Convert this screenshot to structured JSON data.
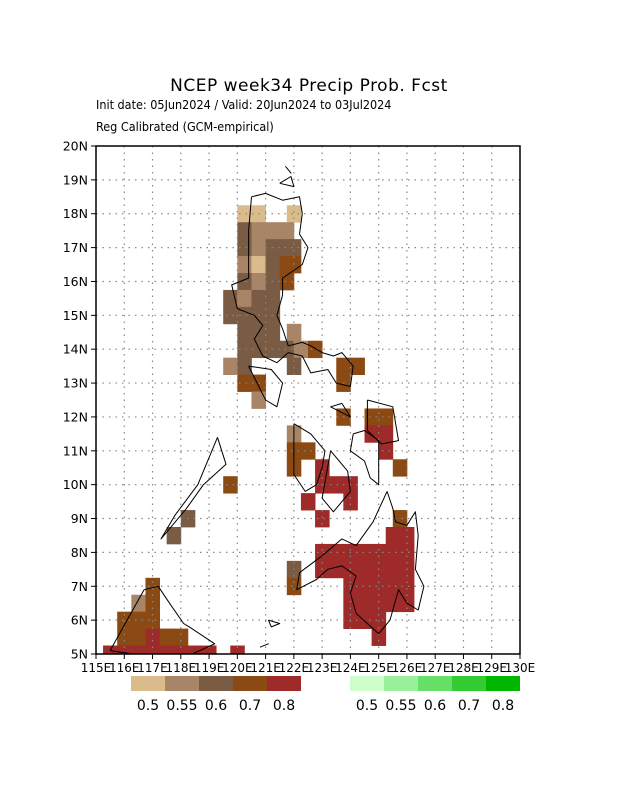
{
  "title": "NCEP week34 Precip Prob. Fcst",
  "subtitle_1": "Init date: 05Jun2024 / Valid: 20Jun2024 to 03Jul2024",
  "subtitle_2": "Reg Calibrated (GCM-empirical)",
  "axes": {
    "lon_ticks": [
      "115E",
      "116E",
      "117E",
      "118E",
      "119E",
      "120E",
      "121E",
      "122E",
      "123E",
      "124E",
      "125E",
      "126E",
      "127E",
      "128E",
      "129E",
      "130E"
    ],
    "lat_ticks": [
      "5N",
      "6N",
      "7N",
      "8N",
      "9N",
      "10N",
      "11N",
      "12N",
      "13N",
      "14N",
      "15N",
      "16N",
      "17N",
      "18N",
      "19N",
      "20N"
    ],
    "lon_range": [
      115,
      130
    ],
    "lat_range": [
      5,
      20
    ],
    "grid": "dotted"
  },
  "legend_dry": {
    "colors": [
      "#d9bb8c",
      "#a88566",
      "#7a5c45",
      "#8b4a14",
      "#9e2a2a"
    ],
    "labels": [
      "0.5",
      "0.55",
      "0.6",
      "0.7",
      "0.8"
    ]
  },
  "legend_wet": {
    "colors": [
      "#ccffcc",
      "#99f099",
      "#66e066",
      "#33cc33",
      "#00b800"
    ],
    "labels": [
      "0.5",
      "0.55",
      "0.6",
      "0.7",
      "0.8"
    ]
  },
  "colors": {
    "c1": "#d9bb8c",
    "c2": "#a88566",
    "c3": "#7a5c45",
    "c4": "#8b4a14",
    "c5": "#9e2a2a"
  },
  "map_cells": [
    {
      "lon": 120.25,
      "lat": 18.0,
      "c": "c1"
    },
    {
      "lon": 120.75,
      "lat": 18.0,
      "c": "c1"
    },
    {
      "lon": 122.0,
      "lat": 18.0,
      "c": "c1"
    },
    {
      "lon": 120.25,
      "lat": 17.5,
      "c": "c3"
    },
    {
      "lon": 120.75,
      "lat": 17.5,
      "c": "c2"
    },
    {
      "lon": 121.25,
      "lat": 17.5,
      "c": "c2"
    },
    {
      "lon": 121.75,
      "lat": 17.5,
      "c": "c2"
    },
    {
      "lon": 120.25,
      "lat": 17.0,
      "c": "c3"
    },
    {
      "lon": 120.75,
      "lat": 17.0,
      "c": "c2"
    },
    {
      "lon": 121.25,
      "lat": 17.0,
      "c": "c3"
    },
    {
      "lon": 121.75,
      "lat": 17.0,
      "c": "c3"
    },
    {
      "lon": 122.0,
      "lat": 17.0,
      "c": "c3"
    },
    {
      "lon": 120.25,
      "lat": 16.5,
      "c": "c2"
    },
    {
      "lon": 120.75,
      "lat": 16.5,
      "c": "c1"
    },
    {
      "lon": 121.25,
      "lat": 16.5,
      "c": "c3"
    },
    {
      "lon": 121.75,
      "lat": 16.5,
      "c": "c4"
    },
    {
      "lon": 122.0,
      "lat": 16.5,
      "c": "c4"
    },
    {
      "lon": 120.25,
      "lat": 16.0,
      "c": "c3"
    },
    {
      "lon": 120.75,
      "lat": 16.0,
      "c": "c2"
    },
    {
      "lon": 121.25,
      "lat": 16.0,
      "c": "c3"
    },
    {
      "lon": 121.75,
      "lat": 16.0,
      "c": "c4"
    },
    {
      "lon": 119.75,
      "lat": 15.5,
      "c": "c3"
    },
    {
      "lon": 120.25,
      "lat": 15.5,
      "c": "c2"
    },
    {
      "lon": 120.75,
      "lat": 15.5,
      "c": "c3"
    },
    {
      "lon": 121.25,
      "lat": 15.5,
      "c": "c3"
    },
    {
      "lon": 119.75,
      "lat": 15.0,
      "c": "c3"
    },
    {
      "lon": 120.25,
      "lat": 15.0,
      "c": "c3"
    },
    {
      "lon": 120.75,
      "lat": 15.0,
      "c": "c3"
    },
    {
      "lon": 121.25,
      "lat": 15.0,
      "c": "c3"
    },
    {
      "lon": 120.25,
      "lat": 14.5,
      "c": "c3"
    },
    {
      "lon": 120.75,
      "lat": 14.5,
      "c": "c3"
    },
    {
      "lon": 121.25,
      "lat": 14.5,
      "c": "c3"
    },
    {
      "lon": 122.0,
      "lat": 14.5,
      "c": "c2"
    },
    {
      "lon": 120.25,
      "lat": 14.0,
      "c": "c3"
    },
    {
      "lon": 120.75,
      "lat": 14.0,
      "c": "c3"
    },
    {
      "lon": 121.25,
      "lat": 14.0,
      "c": "c3"
    },
    {
      "lon": 121.75,
      "lat": 14.0,
      "c": "c3"
    },
    {
      "lon": 122.25,
      "lat": 14.0,
      "c": "c2"
    },
    {
      "lon": 122.75,
      "lat": 14.0,
      "c": "c4"
    },
    {
      "lon": 119.75,
      "lat": 13.5,
      "c": "c2"
    },
    {
      "lon": 120.25,
      "lat": 13.5,
      "c": "c3"
    },
    {
      "lon": 122.0,
      "lat": 13.5,
      "c": "c3"
    },
    {
      "lon": 123.75,
      "lat": 13.5,
      "c": "c4"
    },
    {
      "lon": 124.25,
      "lat": 13.5,
      "c": "c4"
    },
    {
      "lon": 120.25,
      "lat": 13.0,
      "c": "c4"
    },
    {
      "lon": 120.75,
      "lat": 13.0,
      "c": "c4"
    },
    {
      "lon": 123.75,
      "lat": 13.0,
      "c": "c4"
    },
    {
      "lon": 120.75,
      "lat": 12.5,
      "c": "c2"
    },
    {
      "lon": 123.75,
      "lat": 12.0,
      "c": "c4"
    },
    {
      "lon": 124.75,
      "lat": 12.0,
      "c": "c4"
    },
    {
      "lon": 125.25,
      "lat": 12.0,
      "c": "c4"
    },
    {
      "lon": 122.0,
      "lat": 11.5,
      "c": "c2"
    },
    {
      "lon": 124.75,
      "lat": 11.5,
      "c": "c5"
    },
    {
      "lon": 125.25,
      "lat": 11.5,
      "c": "c5"
    },
    {
      "lon": 122.0,
      "lat": 11.0,
      "c": "c4"
    },
    {
      "lon": 122.5,
      "lat": 11.0,
      "c": "c4"
    },
    {
      "lon": 125.25,
      "lat": 11.0,
      "c": "c5"
    },
    {
      "lon": 122.0,
      "lat": 10.5,
      "c": "c4"
    },
    {
      "lon": 123.0,
      "lat": 10.5,
      "c": "c5"
    },
    {
      "lon": 125.75,
      "lat": 10.5,
      "c": "c4"
    },
    {
      "lon": 123.0,
      "lat": 10.0,
      "c": "c5"
    },
    {
      "lon": 123.5,
      "lat": 10.0,
      "c": "c5"
    },
    {
      "lon": 124.0,
      "lat": 10.0,
      "c": "c5"
    },
    {
      "lon": 119.75,
      "lat": 10.0,
      "c": "c4"
    },
    {
      "lon": 122.5,
      "lat": 9.5,
      "c": "c5"
    },
    {
      "lon": 124.0,
      "lat": 9.5,
      "c": "c5"
    },
    {
      "lon": 118.25,
      "lat": 9.0,
      "c": "c3"
    },
    {
      "lon": 123.0,
      "lat": 9.0,
      "c": "c5"
    },
    {
      "lon": 125.75,
      "lat": 9.0,
      "c": "c4"
    },
    {
      "lon": 117.75,
      "lat": 8.5,
      "c": "c3"
    },
    {
      "lon": 125.5,
      "lat": 8.5,
      "c": "c5"
    },
    {
      "lon": 126.0,
      "lat": 8.5,
      "c": "c5"
    },
    {
      "lon": 123.0,
      "lat": 8.0,
      "c": "c5"
    },
    {
      "lon": 123.5,
      "lat": 8.0,
      "c": "c5"
    },
    {
      "lon": 124.0,
      "lat": 8.0,
      "c": "c5"
    },
    {
      "lon": 124.5,
      "lat": 8.0,
      "c": "c5"
    },
    {
      "lon": 125.0,
      "lat": 8.0,
      "c": "c5"
    },
    {
      "lon": 125.5,
      "lat": 8.0,
      "c": "c5"
    },
    {
      "lon": 126.0,
      "lat": 8.0,
      "c": "c5"
    },
    {
      "lon": 122.0,
      "lat": 7.5,
      "c": "c3"
    },
    {
      "lon": 123.0,
      "lat": 7.5,
      "c": "c5"
    },
    {
      "lon": 123.5,
      "lat": 7.5,
      "c": "c5"
    },
    {
      "lon": 124.0,
      "lat": 7.5,
      "c": "c5"
    },
    {
      "lon": 124.5,
      "lat": 7.5,
      "c": "c5"
    },
    {
      "lon": 125.0,
      "lat": 7.5,
      "c": "c5"
    },
    {
      "lon": 125.5,
      "lat": 7.5,
      "c": "c5"
    },
    {
      "lon": 126.0,
      "lat": 7.5,
      "c": "c5"
    },
    {
      "lon": 117.0,
      "lat": 7.0,
      "c": "c4"
    },
    {
      "lon": 122.0,
      "lat": 7.0,
      "c": "c4"
    },
    {
      "lon": 124.0,
      "lat": 7.0,
      "c": "c5"
    },
    {
      "lon": 124.5,
      "lat": 7.0,
      "c": "c5"
    },
    {
      "lon": 125.0,
      "lat": 7.0,
      "c": "c5"
    },
    {
      "lon": 125.5,
      "lat": 7.0,
      "c": "c5"
    },
    {
      "lon": 126.0,
      "lat": 7.0,
      "c": "c5"
    },
    {
      "lon": 116.5,
      "lat": 6.5,
      "c": "c2"
    },
    {
      "lon": 117.0,
      "lat": 6.5,
      "c": "c4"
    },
    {
      "lon": 124.0,
      "lat": 6.5,
      "c": "c5"
    },
    {
      "lon": 124.5,
      "lat": 6.5,
      "c": "c5"
    },
    {
      "lon": 125.0,
      "lat": 6.5,
      "c": "c5"
    },
    {
      "lon": 125.5,
      "lat": 6.5,
      "c": "c5"
    },
    {
      "lon": 126.0,
      "lat": 6.5,
      "c": "c5"
    },
    {
      "lon": 116.0,
      "lat": 6.0,
      "c": "c4"
    },
    {
      "lon": 116.5,
      "lat": 6.0,
      "c": "c4"
    },
    {
      "lon": 117.0,
      "lat": 6.0,
      "c": "c4"
    },
    {
      "lon": 124.0,
      "lat": 6.0,
      "c": "c5"
    },
    {
      "lon": 124.5,
      "lat": 6.0,
      "c": "c5"
    },
    {
      "lon": 125.0,
      "lat": 6.0,
      "c": "c5"
    },
    {
      "lon": 116.0,
      "lat": 5.5,
      "c": "c4"
    },
    {
      "lon": 116.5,
      "lat": 5.5,
      "c": "c4"
    },
    {
      "lon": 117.0,
      "lat": 5.5,
      "c": "c5"
    },
    {
      "lon": 117.5,
      "lat": 5.5,
      "c": "c4"
    },
    {
      "lon": 118.0,
      "lat": 5.5,
      "c": "c4"
    },
    {
      "lon": 125.0,
      "lat": 5.5,
      "c": "c5"
    },
    {
      "lon": 115.5,
      "lat": 5.0,
      "c": "c5"
    },
    {
      "lon": 116.0,
      "lat": 5.0,
      "c": "c5"
    },
    {
      "lon": 116.5,
      "lat": 5.0,
      "c": "c5"
    },
    {
      "lon": 117.0,
      "lat": 5.0,
      "c": "c5"
    },
    {
      "lon": 117.5,
      "lat": 5.0,
      "c": "c5"
    },
    {
      "lon": 118.0,
      "lat": 5.0,
      "c": "c5"
    },
    {
      "lon": 118.5,
      "lat": 5.0,
      "c": "c5"
    },
    {
      "lon": 119.0,
      "lat": 5.0,
      "c": "c5"
    },
    {
      "lon": 120.0,
      "lat": 5.0,
      "c": "c5"
    }
  ],
  "coastlines": [
    [
      [
        120.5,
        18.5
      ],
      [
        121.0,
        18.6
      ],
      [
        121.6,
        18.4
      ],
      [
        122.2,
        18.5
      ],
      [
        122.3,
        18.0
      ],
      [
        122.2,
        17.4
      ],
      [
        122.5,
        17.0
      ],
      [
        122.3,
        16.5
      ],
      [
        121.6,
        16.1
      ],
      [
        121.6,
        15.6
      ],
      [
        121.4,
        15.0
      ],
      [
        121.6,
        14.6
      ],
      [
        121.8,
        14.1
      ],
      [
        122.3,
        14.2
      ],
      [
        122.6,
        14.1
      ],
      [
        123.0,
        13.9
      ],
      [
        123.4,
        13.8
      ],
      [
        123.7,
        13.9
      ],
      [
        124.1,
        13.5
      ],
      [
        124.0,
        12.9
      ],
      [
        123.5,
        13.0
      ],
      [
        123.2,
        13.4
      ],
      [
        122.6,
        13.3
      ],
      [
        122.3,
        13.8
      ],
      [
        121.8,
        13.9
      ],
      [
        121.4,
        13.6
      ],
      [
        120.9,
        13.8
      ],
      [
        120.6,
        14.3
      ],
      [
        120.9,
        14.7
      ],
      [
        120.6,
        15.0
      ],
      [
        120.0,
        15.2
      ],
      [
        119.8,
        15.9
      ],
      [
        120.4,
        16.1
      ],
      [
        120.4,
        16.8
      ],
      [
        120.4,
        17.5
      ],
      [
        120.5,
        18.5
      ]
    ],
    [
      [
        120.4,
        13.5
      ],
      [
        121.2,
        13.4
      ],
      [
        121.6,
        13.0
      ],
      [
        121.4,
        12.3
      ],
      [
        121.0,
        12.5
      ],
      [
        120.4,
        13.5
      ]
    ],
    [
      [
        119.3,
        11.4
      ],
      [
        119.6,
        10.6
      ],
      [
        118.8,
        10.0
      ],
      [
        118.2,
        9.3
      ],
      [
        117.3,
        8.4
      ],
      [
        117.8,
        9.1
      ],
      [
        118.6,
        10.0
      ],
      [
        119.3,
        11.4
      ]
    ],
    [
      [
        122.0,
        11.8
      ],
      [
        122.6,
        11.5
      ],
      [
        123.1,
        11.0
      ],
      [
        123.0,
        10.5
      ],
      [
        122.8,
        10.0
      ],
      [
        122.4,
        9.8
      ],
      [
        122.0,
        10.3
      ],
      [
        122.0,
        11.2
      ],
      [
        122.0,
        11.8
      ]
    ],
    [
      [
        123.3,
        11.0
      ],
      [
        123.9,
        10.4
      ],
      [
        124.0,
        9.8
      ],
      [
        123.4,
        9.2
      ],
      [
        123.0,
        9.6
      ],
      [
        123.3,
        11.0
      ]
    ],
    [
      [
        124.1,
        11.5
      ],
      [
        124.0,
        11.0
      ],
      [
        124.5,
        10.7
      ],
      [
        124.7,
        10.2
      ],
      [
        125.0,
        10.0
      ],
      [
        125.0,
        10.8
      ],
      [
        125.0,
        11.3
      ],
      [
        124.5,
        11.6
      ],
      [
        124.1,
        11.5
      ]
    ],
    [
      [
        124.6,
        12.5
      ],
      [
        125.5,
        12.3
      ],
      [
        125.7,
        11.3
      ],
      [
        125.1,
        11.2
      ],
      [
        124.6,
        11.6
      ],
      [
        124.6,
        12.5
      ]
    ],
    [
      [
        123.7,
        12.4
      ],
      [
        124.0,
        12.0
      ],
      [
        123.3,
        12.3
      ],
      [
        123.7,
        12.4
      ]
    ],
    [
      [
        125.3,
        9.8
      ],
      [
        125.5,
        9.3
      ],
      [
        125.6,
        8.9
      ],
      [
        126.0,
        8.8
      ],
      [
        126.3,
        9.2
      ],
      [
        126.4,
        8.5
      ],
      [
        126.3,
        7.5
      ],
      [
        126.6,
        7.0
      ],
      [
        126.4,
        6.3
      ],
      [
        126.0,
        6.5
      ],
      [
        125.7,
        6.9
      ],
      [
        125.4,
        6.0
      ],
      [
        125.0,
        5.6
      ],
      [
        124.2,
        6.2
      ],
      [
        124.0,
        6.8
      ],
      [
        124.2,
        7.3
      ],
      [
        123.7,
        7.6
      ],
      [
        123.2,
        7.5
      ],
      [
        122.8,
        7.2
      ],
      [
        122.1,
        6.9
      ],
      [
        122.2,
        7.4
      ],
      [
        123.0,
        7.9
      ],
      [
        123.7,
        8.4
      ],
      [
        124.2,
        8.2
      ],
      [
        124.8,
        8.9
      ],
      [
        125.3,
        9.8
      ]
    ],
    [
      [
        115.5,
        5.1
      ],
      [
        116.1,
        6.0
      ],
      [
        116.7,
        6.9
      ],
      [
        117.2,
        7.0
      ],
      [
        117.6,
        6.5
      ],
      [
        118.1,
        5.9
      ],
      [
        118.3,
        5.8
      ],
      [
        119.2,
        5.3
      ],
      [
        118.4,
        5.0
      ],
      [
        117.7,
        5.0
      ],
      [
        116.3,
        5.0
      ],
      [
        115.5,
        5.1
      ]
    ],
    [
      [
        121.5,
        18.9
      ],
      [
        121.9,
        19.1
      ],
      [
        122.0,
        18.8
      ],
      [
        121.5,
        18.9
      ]
    ],
    [
      [
        121.7,
        19.4
      ],
      [
        121.9,
        19.2
      ],
      [
        121.7,
        19.4
      ]
    ],
    [
      [
        121.1,
        6.0
      ],
      [
        121.5,
        5.9
      ],
      [
        121.2,
        5.8
      ],
      [
        121.1,
        6.0
      ]
    ],
    [
      [
        120.8,
        5.2
      ],
      [
        121.1,
        5.3
      ],
      [
        120.8,
        5.2
      ]
    ]
  ]
}
